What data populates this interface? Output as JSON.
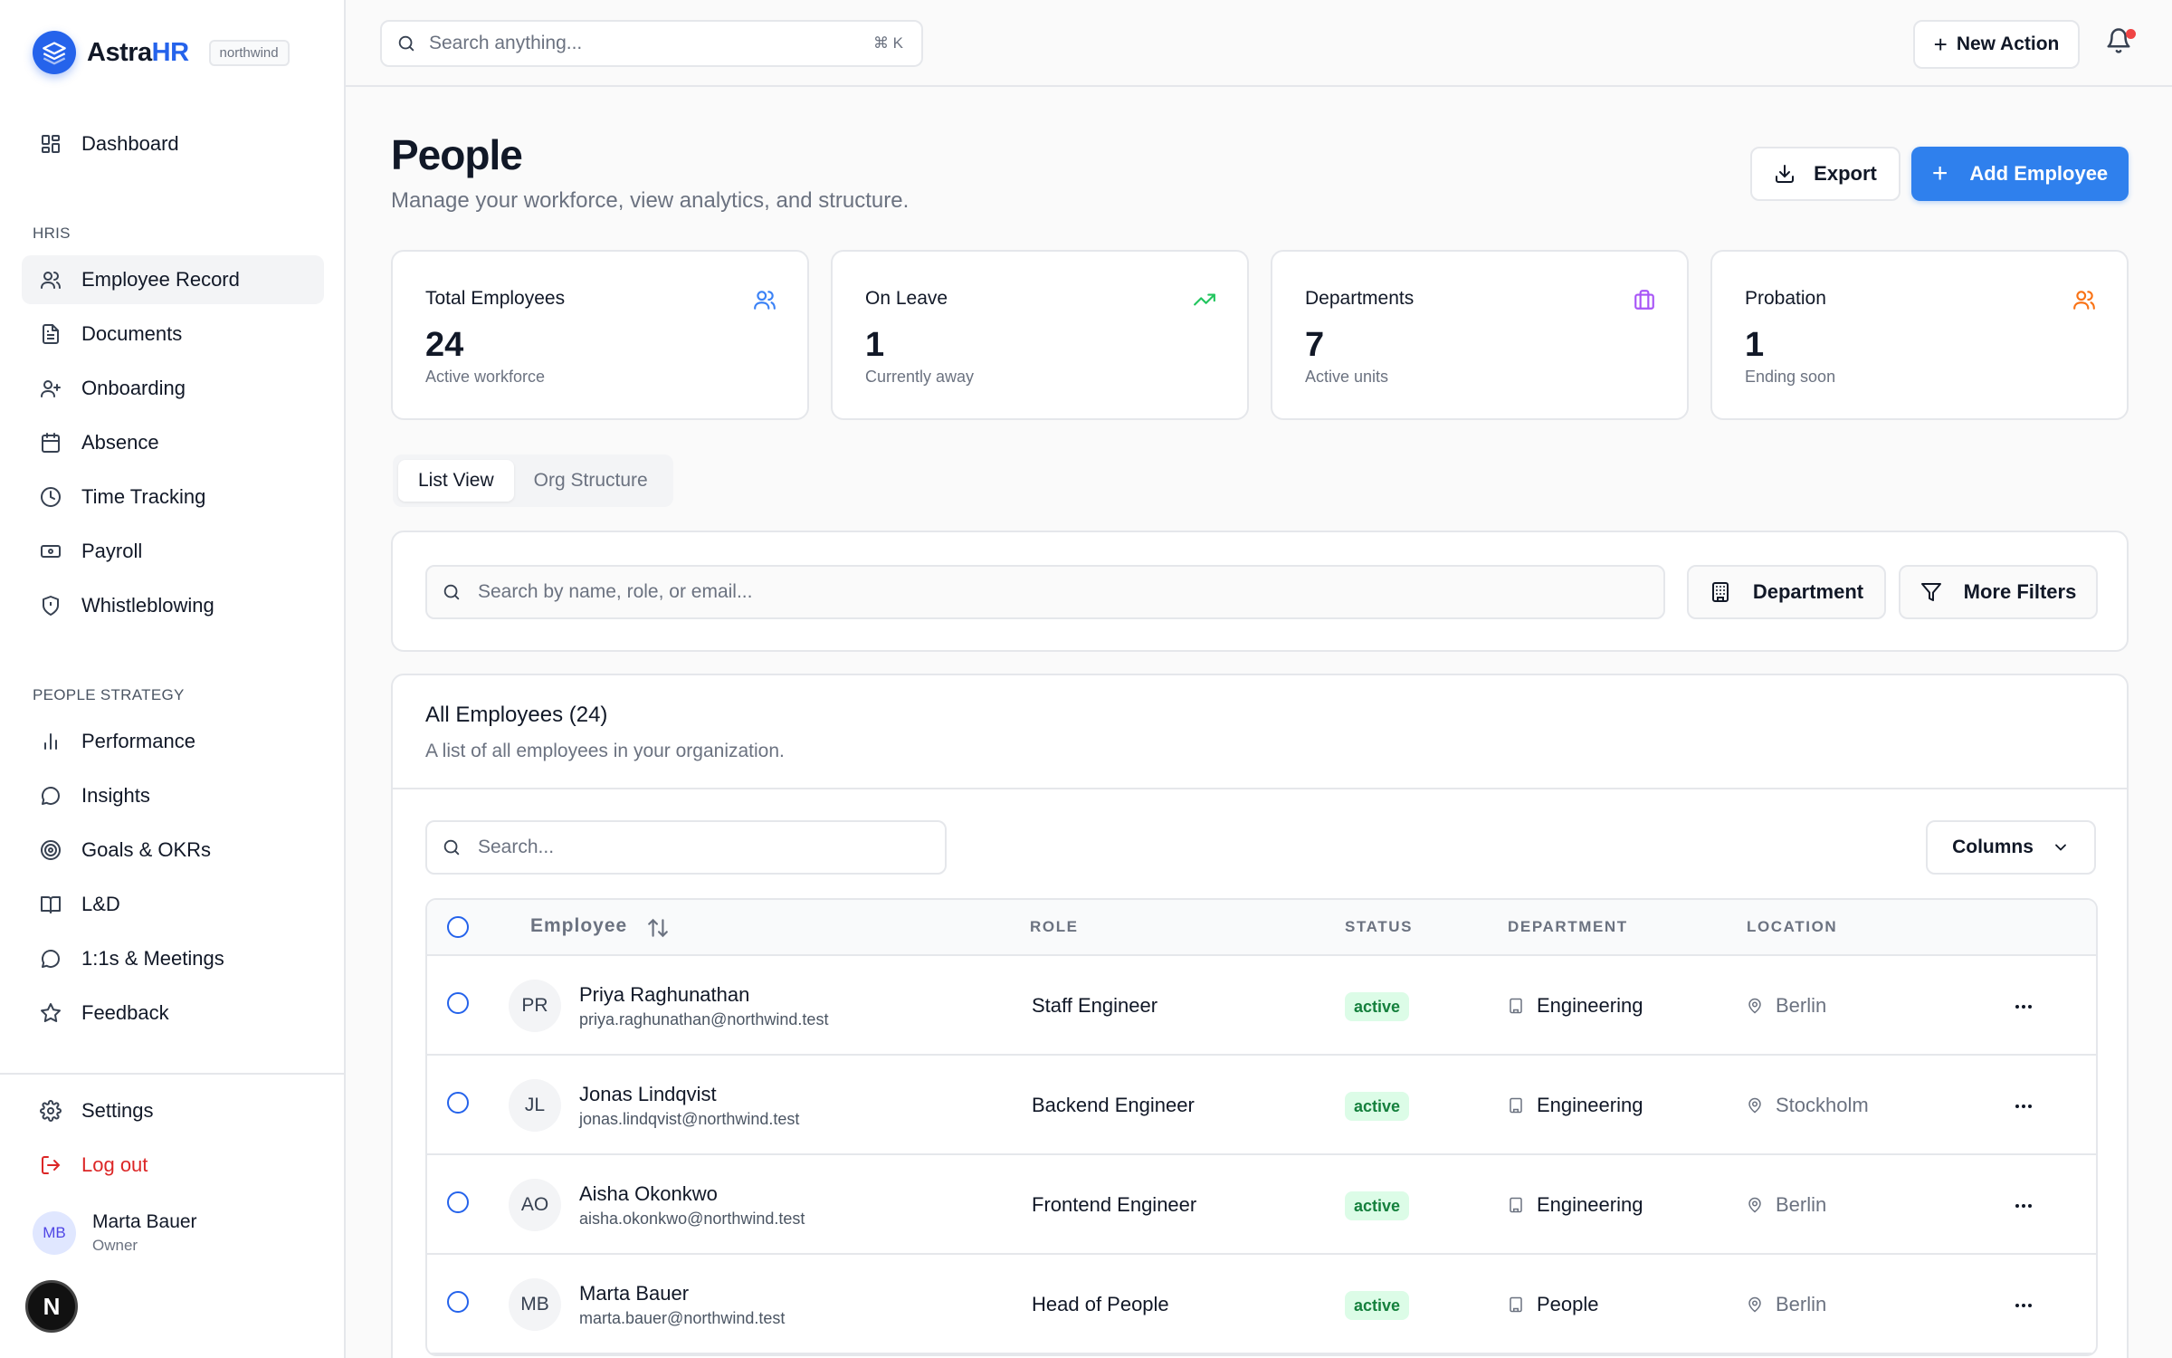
{
  "brand": {
    "name_main": "Astra",
    "name_accent": "HR",
    "org": "northwind"
  },
  "sidebar": {
    "top_items": [
      {
        "label": "Dashboard",
        "icon": "dashboard-icon"
      }
    ],
    "section_hris": "HRIS",
    "hris_items": [
      {
        "label": "Employee Record",
        "icon": "users-icon",
        "active": true
      },
      {
        "label": "Documents",
        "icon": "document-icon"
      },
      {
        "label": "Onboarding",
        "icon": "user-plus-icon"
      },
      {
        "label": "Absence",
        "icon": "calendar-icon"
      },
      {
        "label": "Time Tracking",
        "icon": "clock-icon"
      },
      {
        "label": "Payroll",
        "icon": "banknote-icon"
      },
      {
        "label": "Whistleblowing",
        "icon": "shield-icon"
      }
    ],
    "section_strategy": "PEOPLE STRATEGY",
    "strategy_items": [
      {
        "label": "Performance",
        "icon": "bar-chart-icon"
      },
      {
        "label": "Insights",
        "icon": "chat-bubble-icon"
      },
      {
        "label": "Goals & OKRs",
        "icon": "target-icon"
      },
      {
        "label": "L&D",
        "icon": "book-icon"
      },
      {
        "label": "1:1s & Meetings",
        "icon": "chat-bubble-icon"
      },
      {
        "label": "Feedback",
        "icon": "star-icon"
      }
    ],
    "settings": "Settings",
    "logout": "Log out",
    "user": {
      "initials": "MB",
      "name": "Marta Bauer",
      "role": "Owner"
    },
    "badge": "N"
  },
  "topbar": {
    "search_placeholder": "Search anything...",
    "shortcut": "⌘ K",
    "new_action": "New Action"
  },
  "page": {
    "title": "People",
    "subtitle": "Manage your workforce, view analytics, and structure.",
    "export": "Export",
    "add_employee": "Add Employee"
  },
  "stats": [
    {
      "title": "Total Employees",
      "value": "24",
      "sub": "Active workforce",
      "icon": "users-icon",
      "color": "#3b82f6"
    },
    {
      "title": "On Leave",
      "value": "1",
      "sub": "Currently away",
      "icon": "trending-up-icon",
      "color": "#22c55e"
    },
    {
      "title": "Departments",
      "value": "7",
      "sub": "Active units",
      "icon": "briefcase-icon",
      "color": "#a855f7"
    },
    {
      "title": "Probation",
      "value": "1",
      "sub": "Ending soon",
      "icon": "users-icon",
      "color": "#f97316"
    }
  ],
  "tabs": {
    "list": "List View",
    "org": "Org Structure"
  },
  "filters": {
    "search_placeholder": "Search by name, role, or email...",
    "department": "Department",
    "more_filters": "More Filters"
  },
  "table": {
    "title": "All Employees (24)",
    "subtitle": "A list of all employees in your organization.",
    "search_placeholder": "Search...",
    "columns_button": "Columns",
    "headers": {
      "employee": "Employee",
      "role": "ROLE",
      "status": "STATUS",
      "department": "DEPARTMENT",
      "location": "LOCATION"
    },
    "rows": [
      {
        "initials": "PR",
        "name": "Priya Raghunathan",
        "email": "priya.raghunathan@northwind.test",
        "role": "Staff Engineer",
        "status": "active",
        "department": "Engineering",
        "location": "Berlin"
      },
      {
        "initials": "JL",
        "name": "Jonas Lindqvist",
        "email": "jonas.lindqvist@northwind.test",
        "role": "Backend Engineer",
        "status": "active",
        "department": "Engineering",
        "location": "Stockholm"
      },
      {
        "initials": "AO",
        "name": "Aisha Okonkwo",
        "email": "aisha.okonkwo@northwind.test",
        "role": "Frontend Engineer",
        "status": "active",
        "department": "Engineering",
        "location": "Berlin"
      },
      {
        "initials": "MB",
        "name": "Marta Bauer",
        "email": "marta.bauer@northwind.test",
        "role": "Head of People",
        "status": "active",
        "department": "People",
        "location": "Berlin"
      }
    ]
  },
  "colors": {
    "accent": "#2563eb",
    "primary_button": "#2f80ed",
    "danger": "#dc2626",
    "status_active_bg": "#dcfce7",
    "status_active_text": "#15803d"
  }
}
